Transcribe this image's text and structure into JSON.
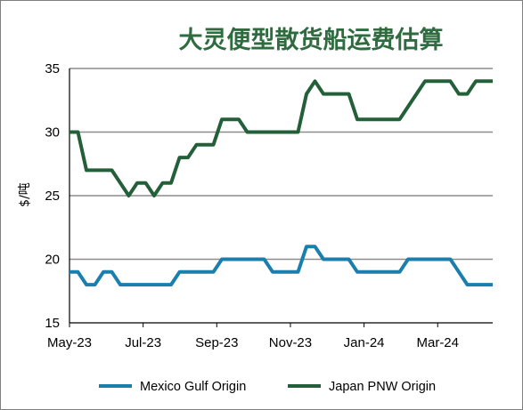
{
  "chart_data": {
    "type": "line",
    "title": "大灵便型散货船运费估算",
    "xlabel": "",
    "ylabel": "$/吨",
    "ylim": [
      15,
      35
    ],
    "yticks": [
      15,
      20,
      25,
      30,
      35
    ],
    "xticks": [
      {
        "label": "May-23",
        "x": 0
      },
      {
        "label": "Jul-23",
        "x": 8.7
      },
      {
        "label": "Sep-23",
        "x": 17.4
      },
      {
        "label": "Nov-23",
        "x": 26.1
      },
      {
        "label": "Jan-24",
        "x": 34.8
      },
      {
        "label": "Mar-24",
        "x": 43.5
      }
    ],
    "xlim": [
      0,
      50
    ],
    "grid": "horizontal",
    "legend": "bottom",
    "x": [
      0,
      1,
      2,
      3,
      4,
      5,
      6,
      7,
      8,
      9,
      10,
      11,
      12,
      13,
      14,
      15,
      16,
      17,
      18,
      19,
      20,
      21,
      22,
      23,
      24,
      25,
      26,
      27,
      28,
      29,
      30,
      31,
      32,
      33,
      34,
      35,
      36,
      37,
      38,
      39,
      40,
      41,
      42,
      43,
      44,
      45,
      46,
      47,
      48,
      49,
      50
    ],
    "series": [
      {
        "name": "Mexico Gulf Origin",
        "color": "#1a7fad",
        "values": [
          19,
          19,
          18,
          18,
          19,
          19,
          18,
          18,
          18,
          18,
          18,
          18,
          18,
          19,
          19,
          19,
          19,
          19,
          20,
          20,
          20,
          20,
          20,
          20,
          19,
          19,
          19,
          19,
          21,
          21,
          20,
          20,
          20,
          20,
          19,
          19,
          19,
          19,
          19,
          19,
          20,
          20,
          20,
          20,
          20,
          20,
          19,
          18,
          18,
          18,
          18
        ]
      },
      {
        "name": "Japan PNW Origin",
        "color": "#23603a",
        "values": [
          30,
          30,
          27,
          27,
          27,
          27,
          26,
          25,
          26,
          26,
          25,
          26,
          26,
          28,
          28,
          29,
          29,
          29,
          31,
          31,
          31,
          30,
          30,
          30,
          30,
          30,
          30,
          30,
          33,
          34,
          33,
          33,
          33,
          33,
          31,
          31,
          31,
          31,
          31,
          31,
          32,
          33,
          34,
          34,
          34,
          34,
          33,
          33,
          34,
          34,
          34
        ]
      }
    ]
  },
  "style": {
    "grid_color": "#8c8c8c",
    "axis_color": "#000000",
    "title_color": "#2e6b3f"
  }
}
